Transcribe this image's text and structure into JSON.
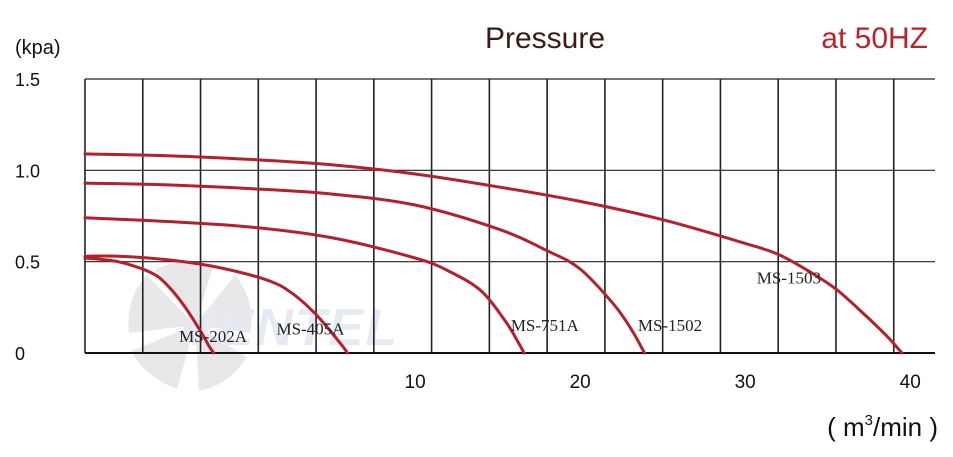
{
  "chart_data": {
    "type": "line",
    "title": "Pressure",
    "subtitle": "at 50HZ",
    "ylabel": "(kpa)",
    "xlabel_parts": {
      "open": "( m",
      "sup": "3",
      "close": "/min )"
    },
    "xlim": [
      -10,
      41.5
    ],
    "ylim": [
      0,
      1.5
    ],
    "x_ticks": [
      10,
      20,
      30,
      40
    ],
    "x_tick_labels": [
      "10",
      "20",
      "30",
      "40"
    ],
    "y_ticks": [
      0,
      0.5,
      1.0,
      1.5
    ],
    "y_tick_labels": [
      "0",
      "0.5",
      "1.0",
      "1.5"
    ],
    "grid": true,
    "grid_x": [
      -10,
      -6.5,
      -3,
      0.5,
      4,
      7.5,
      11,
      14.5,
      18,
      21.5,
      25,
      28.5,
      32,
      35.5,
      39
    ],
    "grid_y": [
      0.5,
      1.0,
      1.5
    ],
    "line_color": "#b5202c",
    "title_color": "#3a1a1a",
    "subtitle_color": "#c0202c",
    "grid_color": "#222222",
    "watermark": "VENTEL",
    "series": [
      {
        "name": "MS-202A",
        "label_pos": [
          -4.3,
          0.06
        ],
        "x": [
          -10,
          -8,
          -6,
          -5,
          -4,
          -3,
          -2.5,
          -2.2
        ],
        "y": [
          0.52,
          0.5,
          0.44,
          0.37,
          0.26,
          0.12,
          0.04,
          0
        ]
      },
      {
        "name": "MS-405A",
        "label_pos": [
          1.6,
          0.1
        ],
        "x": [
          -10,
          -8,
          -5,
          -2,
          1,
          2.5,
          4,
          5.5,
          5.9
        ],
        "y": [
          0.53,
          0.53,
          0.51,
          0.47,
          0.4,
          0.33,
          0.21,
          0.05,
          0
        ]
      },
      {
        "name": "MS-751A",
        "label_pos": [
          15.8,
          0.12
        ],
        "x": [
          -10,
          -5,
          0,
          5,
          10,
          12,
          14,
          15.5,
          16.3,
          16.6
        ],
        "y": [
          0.74,
          0.72,
          0.69,
          0.63,
          0.52,
          0.45,
          0.34,
          0.17,
          0.05,
          0
        ]
      },
      {
        "name": "MS-1502",
        "label_pos": [
          23.5,
          0.12
        ],
        "x": [
          -10,
          -5,
          0,
          5,
          10,
          15,
          18,
          20,
          22,
          23.1,
          23.9
        ],
        "y": [
          0.93,
          0.92,
          0.9,
          0.87,
          0.81,
          0.68,
          0.56,
          0.46,
          0.27,
          0.13,
          0
        ]
      },
      {
        "name": "MS-1503",
        "label_pos": [
          30.7,
          0.38
        ],
        "x": [
          -10,
          -5,
          0,
          5,
          10,
          15,
          20,
          25,
          30,
          32,
          34,
          35.5,
          37,
          38.5,
          39.5
        ],
        "y": [
          1.09,
          1.08,
          1.06,
          1.03,
          0.98,
          0.91,
          0.83,
          0.73,
          0.6,
          0.54,
          0.44,
          0.35,
          0.23,
          0.1,
          0
        ]
      }
    ]
  }
}
